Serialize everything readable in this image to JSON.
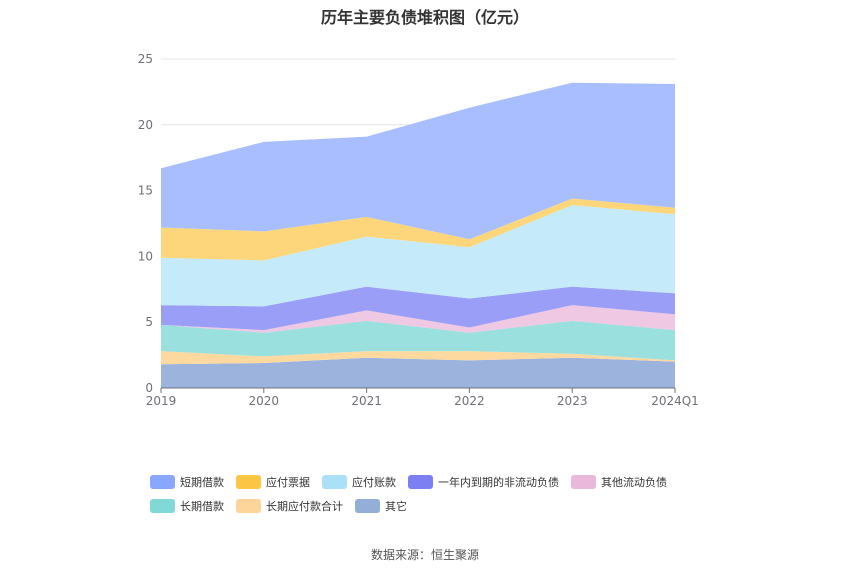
{
  "chart_title": "历年主要负债堆积图（亿元）",
  "source": "数据来源：恒生聚源",
  "chart_data": {
    "type": "area",
    "stacked": true,
    "title": "历年主要负债堆积图（亿元）",
    "categories": [
      "2019",
      "2020",
      "2021",
      "2022",
      "2023",
      "2024Q1"
    ],
    "ylim": [
      0,
      25
    ],
    "yticks": [
      "0",
      "5",
      "10",
      "15",
      "20",
      "25"
    ],
    "grid": true,
    "legend_position": "bottom",
    "series": [
      {
        "name": "其它",
        "color": "#9cb4dd",
        "values": [
          1.8,
          1.9,
          2.3,
          2.1,
          2.3,
          2.0
        ]
      },
      {
        "name": "长期应付款合计",
        "color": "#fdd9a0",
        "values": [
          1.0,
          0.5,
          0.5,
          0.7,
          0.3,
          0.1
        ]
      },
      {
        "name": "长期借款",
        "color": "#9ae0df",
        "values": [
          2.0,
          1.8,
          2.3,
          1.4,
          2.5,
          2.3
        ]
      },
      {
        "name": "其他流动负债",
        "color": "#efc8e3",
        "values": [
          0.0,
          0.2,
          0.8,
          0.4,
          1.2,
          1.2
        ]
      },
      {
        "name": "一年内到期的非流动负债",
        "color": "#9b9ef7",
        "values": [
          1.5,
          1.8,
          1.8,
          2.2,
          1.4,
          1.6
        ]
      },
      {
        "name": "应付账款",
        "color": "#c5ebfb",
        "values": [
          3.6,
          3.5,
          3.8,
          3.9,
          6.2,
          6.0
        ]
      },
      {
        "name": "应付票据",
        "color": "#fdd67b",
        "values": [
          2.3,
          2.2,
          1.5,
          0.6,
          0.5,
          0.5
        ]
      },
      {
        "name": "短期借款",
        "color": "#a8beff",
        "values": [
          4.5,
          6.8,
          6.1,
          10.0,
          8.8,
          9.4
        ]
      }
    ]
  },
  "legend": {
    "row1": [
      {
        "name": "短期借款",
        "color": "#8aa7ff"
      },
      {
        "name": "应付票据",
        "color": "#fdc544"
      },
      {
        "name": "应付账款",
        "color": "#abe0f9"
      },
      {
        "name": "一年内到期的非流动负债",
        "color": "#7b7ff2"
      },
      {
        "name": "其他流动负债",
        "color": "#eab8db"
      }
    ],
    "row2": [
      {
        "name": "长期借款",
        "color": "#80d9d6"
      },
      {
        "name": "长期应付款合计",
        "color": "#fdd49a"
      },
      {
        "name": "其它",
        "color": "#93afd9"
      }
    ]
  }
}
